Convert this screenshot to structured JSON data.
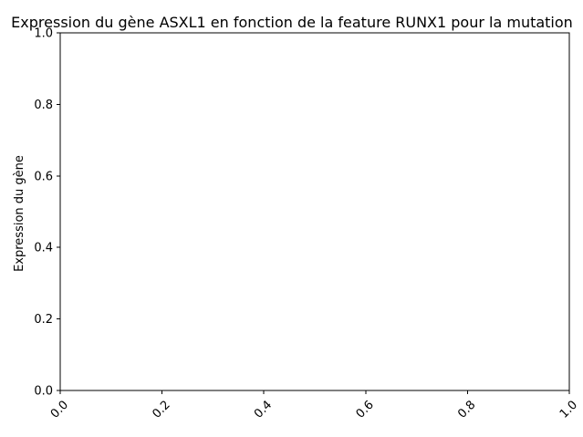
{
  "chart_data": {
    "type": "scatter",
    "title": "Expression du gène ASXL1 en fonction de la feature RUNX1 pour la mutation",
    "xlabel": "",
    "ylabel": "Expression du gène",
    "xlim": [
      0.0,
      1.0
    ],
    "ylim": [
      0.0,
      1.0
    ],
    "x_ticks": [
      "0.0",
      "0.2",
      "0.4",
      "0.6",
      "0.8",
      "1.0"
    ],
    "y_ticks": [
      "0.0",
      "0.2",
      "0.4",
      "0.6",
      "0.8",
      "1.0"
    ],
    "x_tick_rotation": 45,
    "grid": false,
    "series": []
  }
}
